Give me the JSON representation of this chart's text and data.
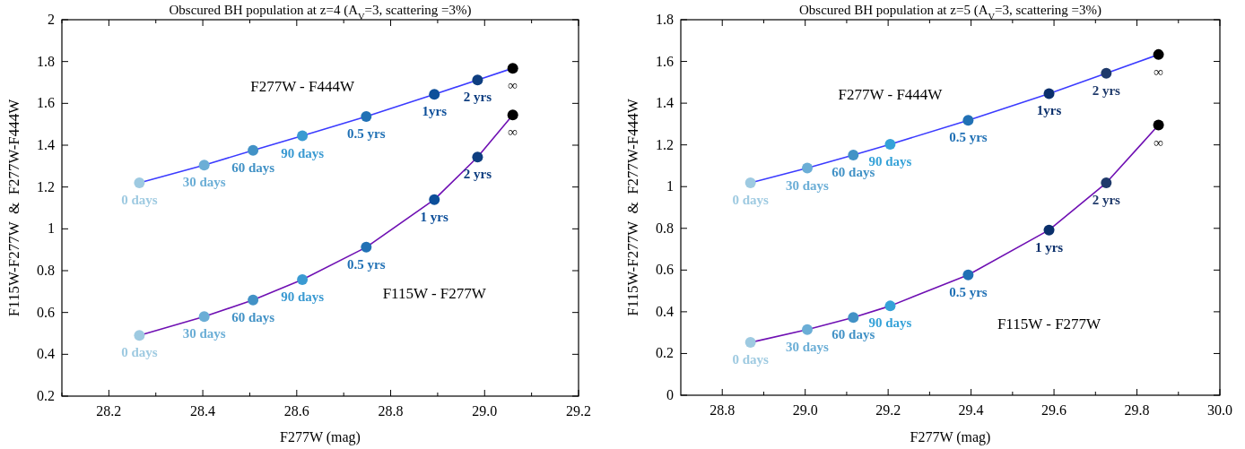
{
  "chart_data": [
    {
      "type": "line",
      "title": "Obscured BH population at z=4 (A$_{V}$=3, scattering =3%)",
      "xlabel": "F277W (mag)",
      "ylabel": "F115W-F277W  &  F277W-F444W",
      "marker": "circle",
      "xlim": [
        28.1,
        29.2
      ],
      "xticks": [
        {
          "value": 28.1,
          "label": null
        },
        28.2,
        {
          "value": 28.3,
          "label": null
        },
        28.4,
        {
          "value": 28.5,
          "label": null
        },
        28.6,
        {
          "value": 28.7,
          "label": null
        },
        28.8,
        {
          "value": 28.9,
          "label": null
        },
        {
          "value": 29.0,
          "label": "29.0"
        },
        {
          "value": 29.1,
          "label": null
        },
        29.2
      ],
      "ylim": [
        0.2,
        2
      ],
      "yticks": [
        0.2,
        0.4,
        0.6,
        0.8,
        1,
        1.2,
        1.4,
        1.6,
        1.8,
        2
      ],
      "series": [
        {
          "name": "F277W - F444W",
          "color": "#3b3bff",
          "x": [
            28.265,
            28.403,
            28.507,
            28.612,
            28.748,
            28.893,
            28.985,
            29.06
          ],
          "values": [
            1.22,
            1.305,
            1.375,
            1.445,
            1.537,
            1.643,
            1.712,
            1.768
          ],
          "colors": [
            "#9ecae1",
            "#6baed6",
            "#4292c6",
            "#3a9ad2",
            "#2171b5",
            "#0d4f9a",
            "#0e3e80",
            "#000000"
          ]
        },
        {
          "name": "F115W - F277W",
          "color": "#6f10b3",
          "x": [
            28.265,
            28.403,
            28.507,
            28.612,
            28.748,
            28.893,
            28.985,
            29.06
          ],
          "values": [
            0.49,
            0.58,
            0.66,
            0.757,
            0.912,
            1.14,
            1.343,
            1.545
          ],
          "colors": [
            "#9ecae1",
            "#6baed6",
            "#4292c6",
            "#3a9ad2",
            "#2171b5",
            "#0d4f9a",
            "#0e3e80",
            "#000000"
          ]
        }
      ],
      "annotations": [
        {
          "text": "0 days",
          "x": 28.265,
          "y": 1.22
        },
        {
          "text": "30 days",
          "x": 28.403,
          "y": 1.305
        },
        {
          "text": "60 days",
          "x": 28.507,
          "y": 1.375
        },
        {
          "text": "90 days",
          "x": 28.612,
          "y": 1.445
        },
        {
          "text": "0.5 yrs",
          "x": 28.748,
          "y": 1.537
        },
        {
          "text": "1yrs",
          "x": 28.893,
          "y": 1.643
        },
        {
          "text": "2 yrs",
          "x": 28.985,
          "y": 1.712
        },
        {
          "text": "∞",
          "x": 29.06,
          "y": 1.768
        },
        {
          "text": "0 days",
          "x": 28.265,
          "y": 0.49
        },
        {
          "text": "30 days",
          "x": 28.403,
          "y": 0.58
        },
        {
          "text": "60 days",
          "x": 28.507,
          "y": 0.66
        },
        {
          "text": "90 days",
          "x": 28.612,
          "y": 0.757
        },
        {
          "text": "0.5 yrs",
          "x": 28.748,
          "y": 0.912
        },
        {
          "text": "1 yrs",
          "x": 28.893,
          "y": 1.14
        },
        {
          "text": "2 yrs",
          "x": 28.985,
          "y": 1.343
        },
        {
          "text": "∞",
          "x": 29.06,
          "y": 1.545
        }
      ]
    },
    {
      "type": "line",
      "title": "Obscured BH population at z=5 (A$_{V}$=3, scattering =3%)",
      "xlabel": "F277W (mag)",
      "ylabel": "F115W-F277W  &  F277W-F444W",
      "marker": "circle",
      "xlim": [
        28.7,
        30.0
      ],
      "xticks": [
        28.8,
        {
          "value": 28.9,
          "label": null
        },
        {
          "value": 29.0,
          "label": "29.0"
        },
        {
          "value": 29.1,
          "label": null
        },
        29.2,
        {
          "value": 29.3,
          "label": null
        },
        29.4,
        {
          "value": 29.5,
          "label": null
        },
        29.6,
        {
          "value": 29.7,
          "label": null
        },
        29.8,
        {
          "value": 29.9,
          "label": null
        },
        {
          "value": 30.0,
          "label": "30.0"
        }
      ],
      "ylim": [
        0,
        1.8
      ],
      "yticks": [
        0,
        0.2,
        0.4,
        0.6,
        0.8,
        1,
        1.2,
        1.4,
        1.6,
        1.8
      ],
      "series": [
        {
          "name": "F277W - F444W",
          "color": "#3b3bff",
          "x": [
            28.868,
            29.005,
            29.116,
            29.205,
            29.393,
            29.588,
            29.726,
            29.852
          ],
          "values": [
            1.018,
            1.089,
            1.151,
            1.203,
            1.318,
            1.446,
            1.543,
            1.633
          ],
          "colors": [
            "#9ecae1",
            "#6baed6",
            "#4292c6",
            "#35a2d8",
            "#2171b5",
            "#0a2f6b",
            "#1f3a6b",
            "#000000"
          ]
        },
        {
          "name": "F115W - F277W",
          "color": "#6f10b3",
          "x": [
            28.868,
            29.005,
            29.116,
            29.205,
            29.393,
            29.588,
            29.726,
            29.852
          ],
          "values": [
            0.253,
            0.315,
            0.373,
            0.428,
            0.577,
            0.792,
            1.018,
            1.295
          ],
          "colors": [
            "#9ecae1",
            "#6baed6",
            "#4292c6",
            "#35a2d8",
            "#2171b5",
            "#0a2f6b",
            "#1f3a6b",
            "#000000"
          ]
        }
      ],
      "annotations": [
        {
          "text": "0 days",
          "x": 28.868,
          "y": 1.018
        },
        {
          "text": "30 days",
          "x": 29.005,
          "y": 1.089
        },
        {
          "text": "60 days",
          "x": 29.116,
          "y": 1.151
        },
        {
          "text": "90 days",
          "x": 29.205,
          "y": 1.203
        },
        {
          "text": "0.5 yrs",
          "x": 29.393,
          "y": 1.318
        },
        {
          "text": "1yrs",
          "x": 29.588,
          "y": 1.446
        },
        {
          "text": "2 yrs",
          "x": 29.726,
          "y": 1.543
        },
        {
          "text": "∞",
          "x": 29.852,
          "y": 1.633
        },
        {
          "text": "0 days",
          "x": 28.868,
          "y": 0.253
        },
        {
          "text": "30 days",
          "x": 29.005,
          "y": 0.315
        },
        {
          "text": "60 days",
          "x": 29.116,
          "y": 0.373
        },
        {
          "text": "90 days",
          "x": 29.205,
          "y": 0.428
        },
        {
          "text": "0.5 yrs",
          "x": 29.393,
          "y": 0.577
        },
        {
          "text": "1 yrs",
          "x": 29.588,
          "y": 0.792
        },
        {
          "text": "2 yrs",
          "x": 29.726,
          "y": 1.018
        },
        {
          "text": "∞",
          "x": 29.852,
          "y": 1.295
        }
      ]
    }
  ]
}
